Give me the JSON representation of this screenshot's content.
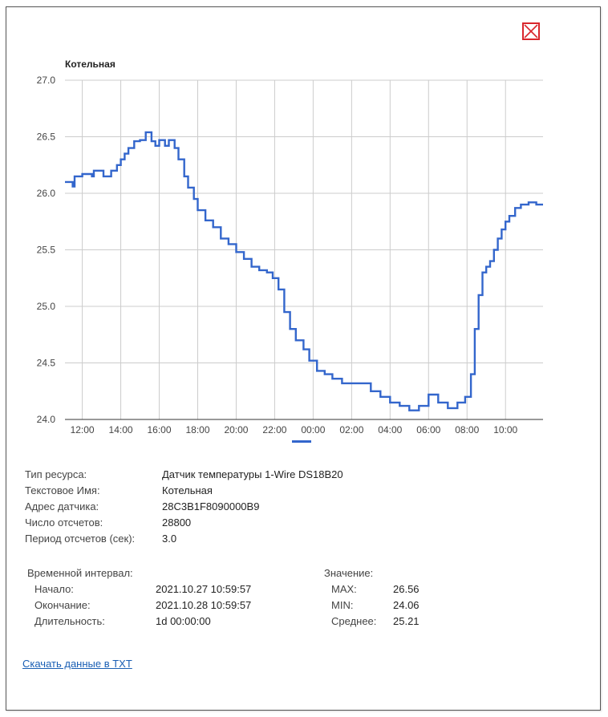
{
  "dialog": {
    "close_icon": "close-icon",
    "accent_color": "#d9262c"
  },
  "chart_data": {
    "type": "line",
    "title": "Котельная",
    "xlabel": "",
    "ylabel": "",
    "ylim": [
      24.0,
      27.0
    ],
    "xlim": [
      11.1,
      35.95
    ],
    "y_ticks": [
      "24.0",
      "24.5",
      "25.0",
      "25.5",
      "26.0",
      "26.5",
      "27.0"
    ],
    "x_ticks": [
      {
        "label": "12:00",
        "h": 12
      },
      {
        "label": "14:00",
        "h": 14
      },
      {
        "label": "16:00",
        "h": 16
      },
      {
        "label": "18:00",
        "h": 18
      },
      {
        "label": "20:00",
        "h": 20
      },
      {
        "label": "22:00",
        "h": 22
      },
      {
        "label": "00:00",
        "h": 24
      },
      {
        "label": "02:00",
        "h": 26
      },
      {
        "label": "04:00",
        "h": 28
      },
      {
        "label": "06:00",
        "h": 30
      },
      {
        "label": "08:00",
        "h": 32
      },
      {
        "label": "10:00",
        "h": 34
      }
    ],
    "series": [
      {
        "name": "Котельная",
        "color": "#3366cc",
        "x": [
          11.1,
          11.5,
          11.6,
          12.0,
          12.5,
          12.6,
          13.1,
          13.5,
          13.8,
          14.0,
          14.2,
          14.4,
          14.7,
          15.0,
          15.3,
          15.6,
          15.8,
          16.0,
          16.3,
          16.5,
          16.8,
          17.0,
          17.3,
          17.5,
          17.8,
          18.0,
          18.4,
          18.8,
          19.2,
          19.6,
          20.0,
          20.4,
          20.8,
          21.2,
          21.6,
          21.9,
          22.2,
          22.5,
          22.8,
          23.1,
          23.5,
          23.8,
          24.2,
          24.6,
          25.0,
          25.5,
          26.0,
          26.5,
          27.0,
          27.5,
          28.0,
          28.5,
          29.0,
          29.5,
          30.0,
          30.5,
          31.0,
          31.5,
          31.9,
          32.2,
          32.4,
          32.6,
          32.8,
          33.0,
          33.2,
          33.4,
          33.6,
          33.8,
          34.0,
          34.2,
          34.5,
          34.8,
          35.2,
          35.6,
          35.95
        ],
        "values": [
          26.1,
          26.06,
          26.15,
          26.17,
          26.15,
          26.2,
          26.15,
          26.2,
          26.25,
          26.3,
          26.35,
          26.4,
          26.46,
          26.47,
          26.54,
          26.46,
          26.42,
          26.47,
          26.42,
          26.47,
          26.4,
          26.3,
          26.15,
          26.05,
          25.95,
          25.85,
          25.76,
          25.7,
          25.6,
          25.55,
          25.48,
          25.42,
          25.35,
          25.32,
          25.3,
          25.25,
          25.15,
          24.95,
          24.8,
          24.7,
          24.62,
          24.52,
          24.43,
          24.4,
          24.36,
          24.32,
          24.32,
          24.32,
          24.25,
          24.2,
          24.15,
          24.12,
          24.08,
          24.12,
          24.22,
          24.15,
          24.1,
          24.15,
          24.2,
          24.4,
          24.8,
          25.1,
          25.3,
          25.35,
          25.4,
          25.5,
          25.6,
          25.68,
          25.75,
          25.8,
          25.87,
          25.9,
          25.92,
          25.9,
          25.9
        ]
      }
    ]
  },
  "info": {
    "resource_type_label": "Тип ресурса:",
    "resource_type_value": "Датчик температуры 1-Wire DS18B20",
    "text_name_label": "Текстовое Имя:",
    "text_name_value": "Котельная",
    "address_label": "Адрес датчика:",
    "address_value": "28C3B1F8090000B9",
    "count_label": "Число отсчетов:",
    "count_value": "28800",
    "period_label": "Период отсчетов (сек):",
    "period_value": "3.0"
  },
  "interval": {
    "heading": "Временной интервал:",
    "start_label": "Начало:",
    "start_value": "2021.10.27 10:59:57",
    "end_label": "Окончание:",
    "end_value": "2021.10.28 10:59:57",
    "duration_label": "Длительность:",
    "duration_value": "1d 00:00:00"
  },
  "stats": {
    "heading": "Значение:",
    "max_label": "MAX:",
    "max_value": "26.56",
    "min_label": "MIN:",
    "min_value": "24.06",
    "avg_label": "Среднее:",
    "avg_value": "25.21"
  },
  "download": {
    "label": "Скачать данные в TXT"
  }
}
